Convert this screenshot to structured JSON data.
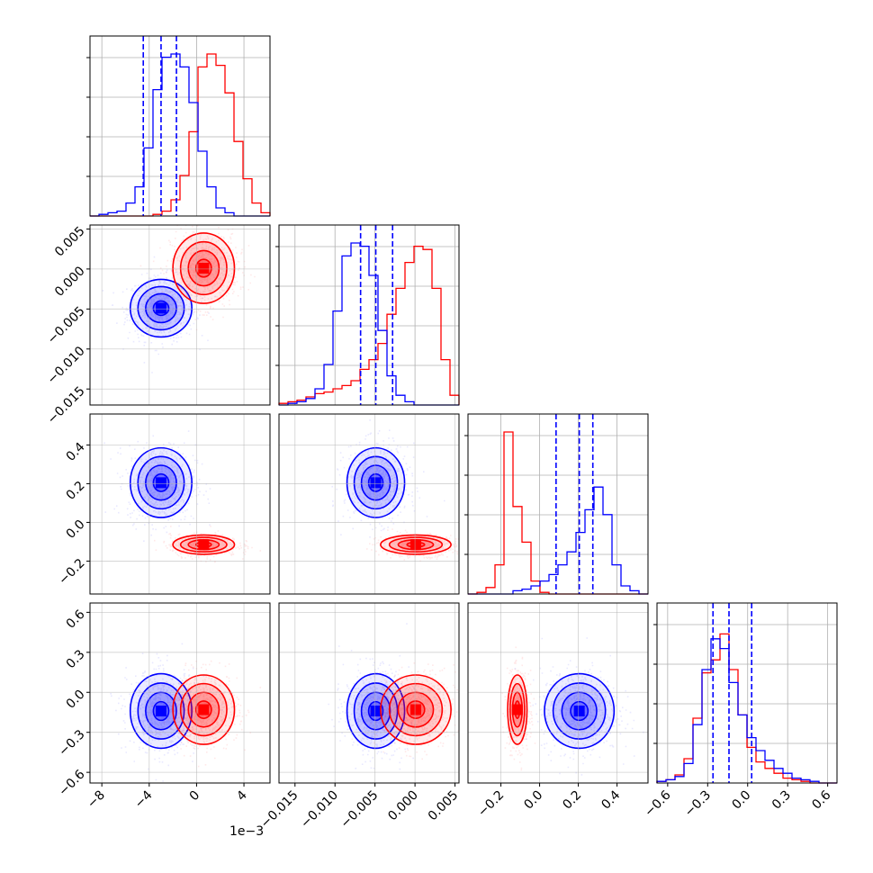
{
  "figure": {
    "offset_text": "1e−3"
  },
  "colors": {
    "blue": "#0000ff",
    "red": "#ff0000",
    "grid": "#b0b0b0"
  },
  "chart_data": {
    "type": "corner",
    "title": "",
    "grid": true,
    "params": [
      {
        "xlim": [
          -9,
          6.2
        ],
        "ticks": [
          -8,
          -4,
          0,
          4
        ],
        "labels": [
          "−8",
          "−4",
          "0",
          "4"
        ]
      },
      {
        "xlim": [
          -0.017,
          0.0055
        ],
        "ticks": [
          -0.015,
          -0.01,
          -0.005,
          0.0,
          0.005
        ],
        "labels": [
          "−0.015",
          "−0.010",
          "−0.005",
          "0.000",
          "0.005"
        ]
      },
      {
        "xlim": [
          -0.37,
          0.56
        ],
        "ticks": [
          -0.2,
          0.0,
          0.2,
          0.4
        ],
        "labels": [
          "−0.2",
          "0.0",
          "0.2",
          "0.4"
        ]
      },
      {
        "xlim": [
          -0.68,
          0.67
        ],
        "ticks": [
          -0.6,
          -0.3,
          0.0,
          0.3,
          0.6
        ],
        "labels": [
          "−0.6",
          "−0.3",
          "0.0",
          "0.3",
          "0.6"
        ]
      }
    ],
    "series": [
      {
        "color": "#0000ff",
        "quantiles": [
          [
            -4.5,
            -3.0,
            -1.7
          ],
          [
            -0.0068,
            -0.0049,
            -0.0028
          ],
          [
            0.085,
            0.205,
            0.275
          ],
          [
            -0.26,
            -0.14,
            0.03
          ]
        ],
        "means": [
          -3.0,
          -0.0049,
          0.205,
          -0.14
        ],
        "sds": [
          1.3,
          0.0018,
          0.09,
          0.14
        ]
      },
      {
        "color": "#ff0000",
        "means": [
          0.6,
          0.0001,
          -0.115,
          -0.13
        ],
        "sds": [
          1.3,
          0.0022,
          0.025,
          0.13
        ]
      }
    ],
    "histograms": [
      {
        "blue": {
          "edges_start": -9,
          "bin_width": 0.76,
          "counts": [
            0,
            1,
            2,
            3,
            8,
            18,
            42,
            78,
            98,
            100,
            92,
            70,
            40,
            18,
            5,
            2,
            0,
            0,
            0,
            0
          ]
        },
        "red": {
          "edges_start": -9,
          "bin_width": 0.76,
          "counts": [
            0,
            0,
            0,
            0,
            0,
            0,
            0,
            1,
            3,
            10,
            25,
            52,
            92,
            100,
            93,
            76,
            46,
            23,
            8,
            2
          ]
        }
      },
      {
        "blue": {
          "edges_start": -0.017,
          "bin_width": 0.001125,
          "counts": [
            0,
            1,
            2,
            4,
            10,
            25,
            58,
            92,
            100,
            98,
            80,
            46,
            18,
            6,
            2,
            0,
            0,
            0,
            0,
            0
          ]
        },
        "red": {
          "edges_start": -0.017,
          "bin_width": 0.001125,
          "counts": [
            1,
            2,
            3,
            5,
            7,
            8,
            10,
            12,
            15,
            22,
            28,
            38,
            56,
            72,
            88,
            98,
            96,
            72,
            28,
            6
          ]
        }
      },
      {
        "blue": {
          "edges_start": -0.37,
          "bin_width": 0.0465,
          "counts": [
            0,
            0,
            0,
            0,
            0,
            2,
            3,
            5,
            8,
            12,
            18,
            26,
            38,
            52,
            66,
            49,
            18,
            5,
            2,
            0
          ]
        },
        "red": {
          "edges_start": -0.37,
          "bin_width": 0.0465,
          "counts": [
            0,
            1,
            4,
            18,
            100,
            54,
            32,
            8,
            1,
            0,
            0,
            0,
            0,
            0,
            0,
            0,
            0,
            0,
            0,
            0
          ]
        }
      },
      {
        "blue": {
          "edges_start": -0.68,
          "bin_width": 0.0675,
          "counts": [
            1,
            2,
            4,
            12,
            36,
            70,
            89,
            83,
            62,
            42,
            28,
            20,
            14,
            9,
            6,
            3,
            2,
            1,
            0,
            0
          ]
        },
        "red": {
          "edges_start": -0.68,
          "bin_width": 0.0675,
          "counts": [
            1,
            2,
            5,
            15,
            40,
            68,
            76,
            92,
            70,
            42,
            22,
            13,
            9,
            6,
            3,
            2,
            1,
            0,
            0,
            0
          ]
        }
      }
    ]
  }
}
